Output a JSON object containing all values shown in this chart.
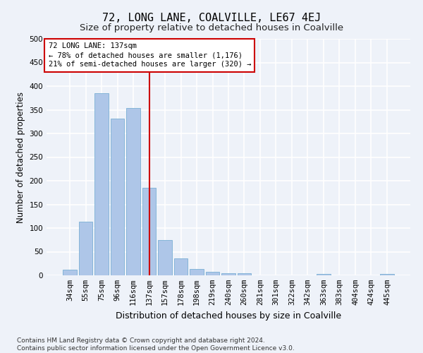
{
  "title": "72, LONG LANE, COALVILLE, LE67 4EJ",
  "subtitle": "Size of property relative to detached houses in Coalville",
  "xlabel": "Distribution of detached houses by size in Coalville",
  "ylabel": "Number of detached properties",
  "categories": [
    "34sqm",
    "55sqm",
    "75sqm",
    "96sqm",
    "116sqm",
    "137sqm",
    "157sqm",
    "178sqm",
    "198sqm",
    "219sqm",
    "240sqm",
    "260sqm",
    "281sqm",
    "301sqm",
    "322sqm",
    "342sqm",
    "363sqm",
    "383sqm",
    "404sqm",
    "424sqm",
    "445sqm"
  ],
  "values": [
    12,
    113,
    385,
    331,
    353,
    185,
    75,
    36,
    13,
    7,
    5,
    4,
    0,
    0,
    0,
    0,
    3,
    0,
    0,
    0,
    3
  ],
  "bar_color": "#aec6e8",
  "bar_edge_color": "#7aafd4",
  "vline_x": 5,
  "vline_color": "#cc0000",
  "annotation_text": "72 LONG LANE: 137sqm\n← 78% of detached houses are smaller (1,176)\n21% of semi-detached houses are larger (320) →",
  "annotation_box_color": "#ffffff",
  "annotation_box_edge_color": "#cc0000",
  "ylim": [
    0,
    500
  ],
  "yticks": [
    0,
    50,
    100,
    150,
    200,
    250,
    300,
    350,
    400,
    450,
    500
  ],
  "footnote": "Contains HM Land Registry data © Crown copyright and database right 2024.\nContains public sector information licensed under the Open Government Licence v3.0.",
  "background_color": "#eef2f9",
  "grid_color": "#ffffff",
  "title_fontsize": 11,
  "subtitle_fontsize": 9.5,
  "axis_label_fontsize": 8.5,
  "tick_fontsize": 7.5,
  "annotation_fontsize": 7.5,
  "footnote_fontsize": 6.5
}
